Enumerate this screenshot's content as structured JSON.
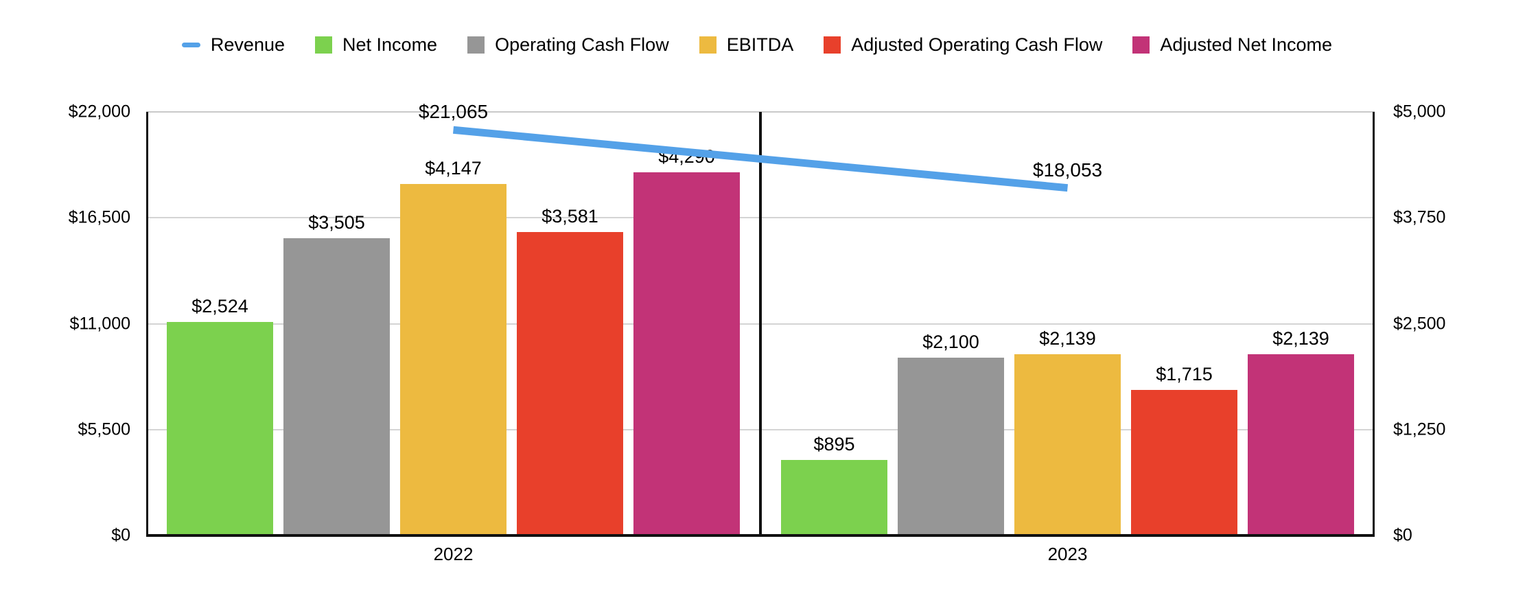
{
  "legend": [
    {
      "label": "Revenue",
      "type": "line",
      "color": "#54a1e8"
    },
    {
      "label": "Net Income",
      "type": "box",
      "color": "#7cd14e"
    },
    {
      "label": "Operating Cash Flow",
      "type": "box",
      "color": "#969696"
    },
    {
      "label": "EBITDA",
      "type": "box",
      "color": "#edba40"
    },
    {
      "label": "Adjusted Operating Cash Flow",
      "type": "box",
      "color": "#e8402b"
    },
    {
      "label": "Adjusted Net Income",
      "type": "box",
      "color": "#c23377"
    }
  ],
  "chart_data": {
    "type": "bar+line",
    "categories": [
      "2022",
      "2023"
    ],
    "bar_series": [
      {
        "name": "Net Income",
        "color": "#7cd14e",
        "values": [
          2524,
          895
        ],
        "labels": [
          "$2,524",
          "$895"
        ]
      },
      {
        "name": "Operating Cash Flow",
        "color": "#969696",
        "values": [
          3505,
          2100
        ],
        "labels": [
          "$3,505",
          "$2,100"
        ]
      },
      {
        "name": "EBITDA",
        "color": "#edba40",
        "values": [
          4147,
          2139
        ],
        "labels": [
          "$4,147",
          "$2,139"
        ]
      },
      {
        "name": "Adjusted Operating Cash Flow",
        "color": "#e8402b",
        "values": [
          3581,
          1715
        ],
        "labels": [
          "$3,581",
          "$1,715"
        ]
      },
      {
        "name": "Adjusted Net Income",
        "color": "#c23377",
        "values": [
          4290,
          2139
        ],
        "labels": [
          "$4,290",
          "$2,139"
        ]
      }
    ],
    "line_series": {
      "name": "Revenue",
      "color": "#54a1e8",
      "values": [
        21065,
        18053
      ],
      "labels": [
        "$21,065",
        "$18,053"
      ]
    },
    "left_axis": {
      "ticks": [
        "$22,000",
        "$16,500",
        "$11,000",
        "$5,500",
        "$0"
      ],
      "min": 0,
      "max": 22000
    },
    "right_axis": {
      "ticks": [
        "$5,000",
        "$3,750",
        "$2,500",
        "$1,250",
        "$0"
      ],
      "min": 0,
      "max": 5000
    },
    "grid": true,
    "legend_position": "top",
    "title": "",
    "xlabel": "",
    "ylabel": ""
  }
}
